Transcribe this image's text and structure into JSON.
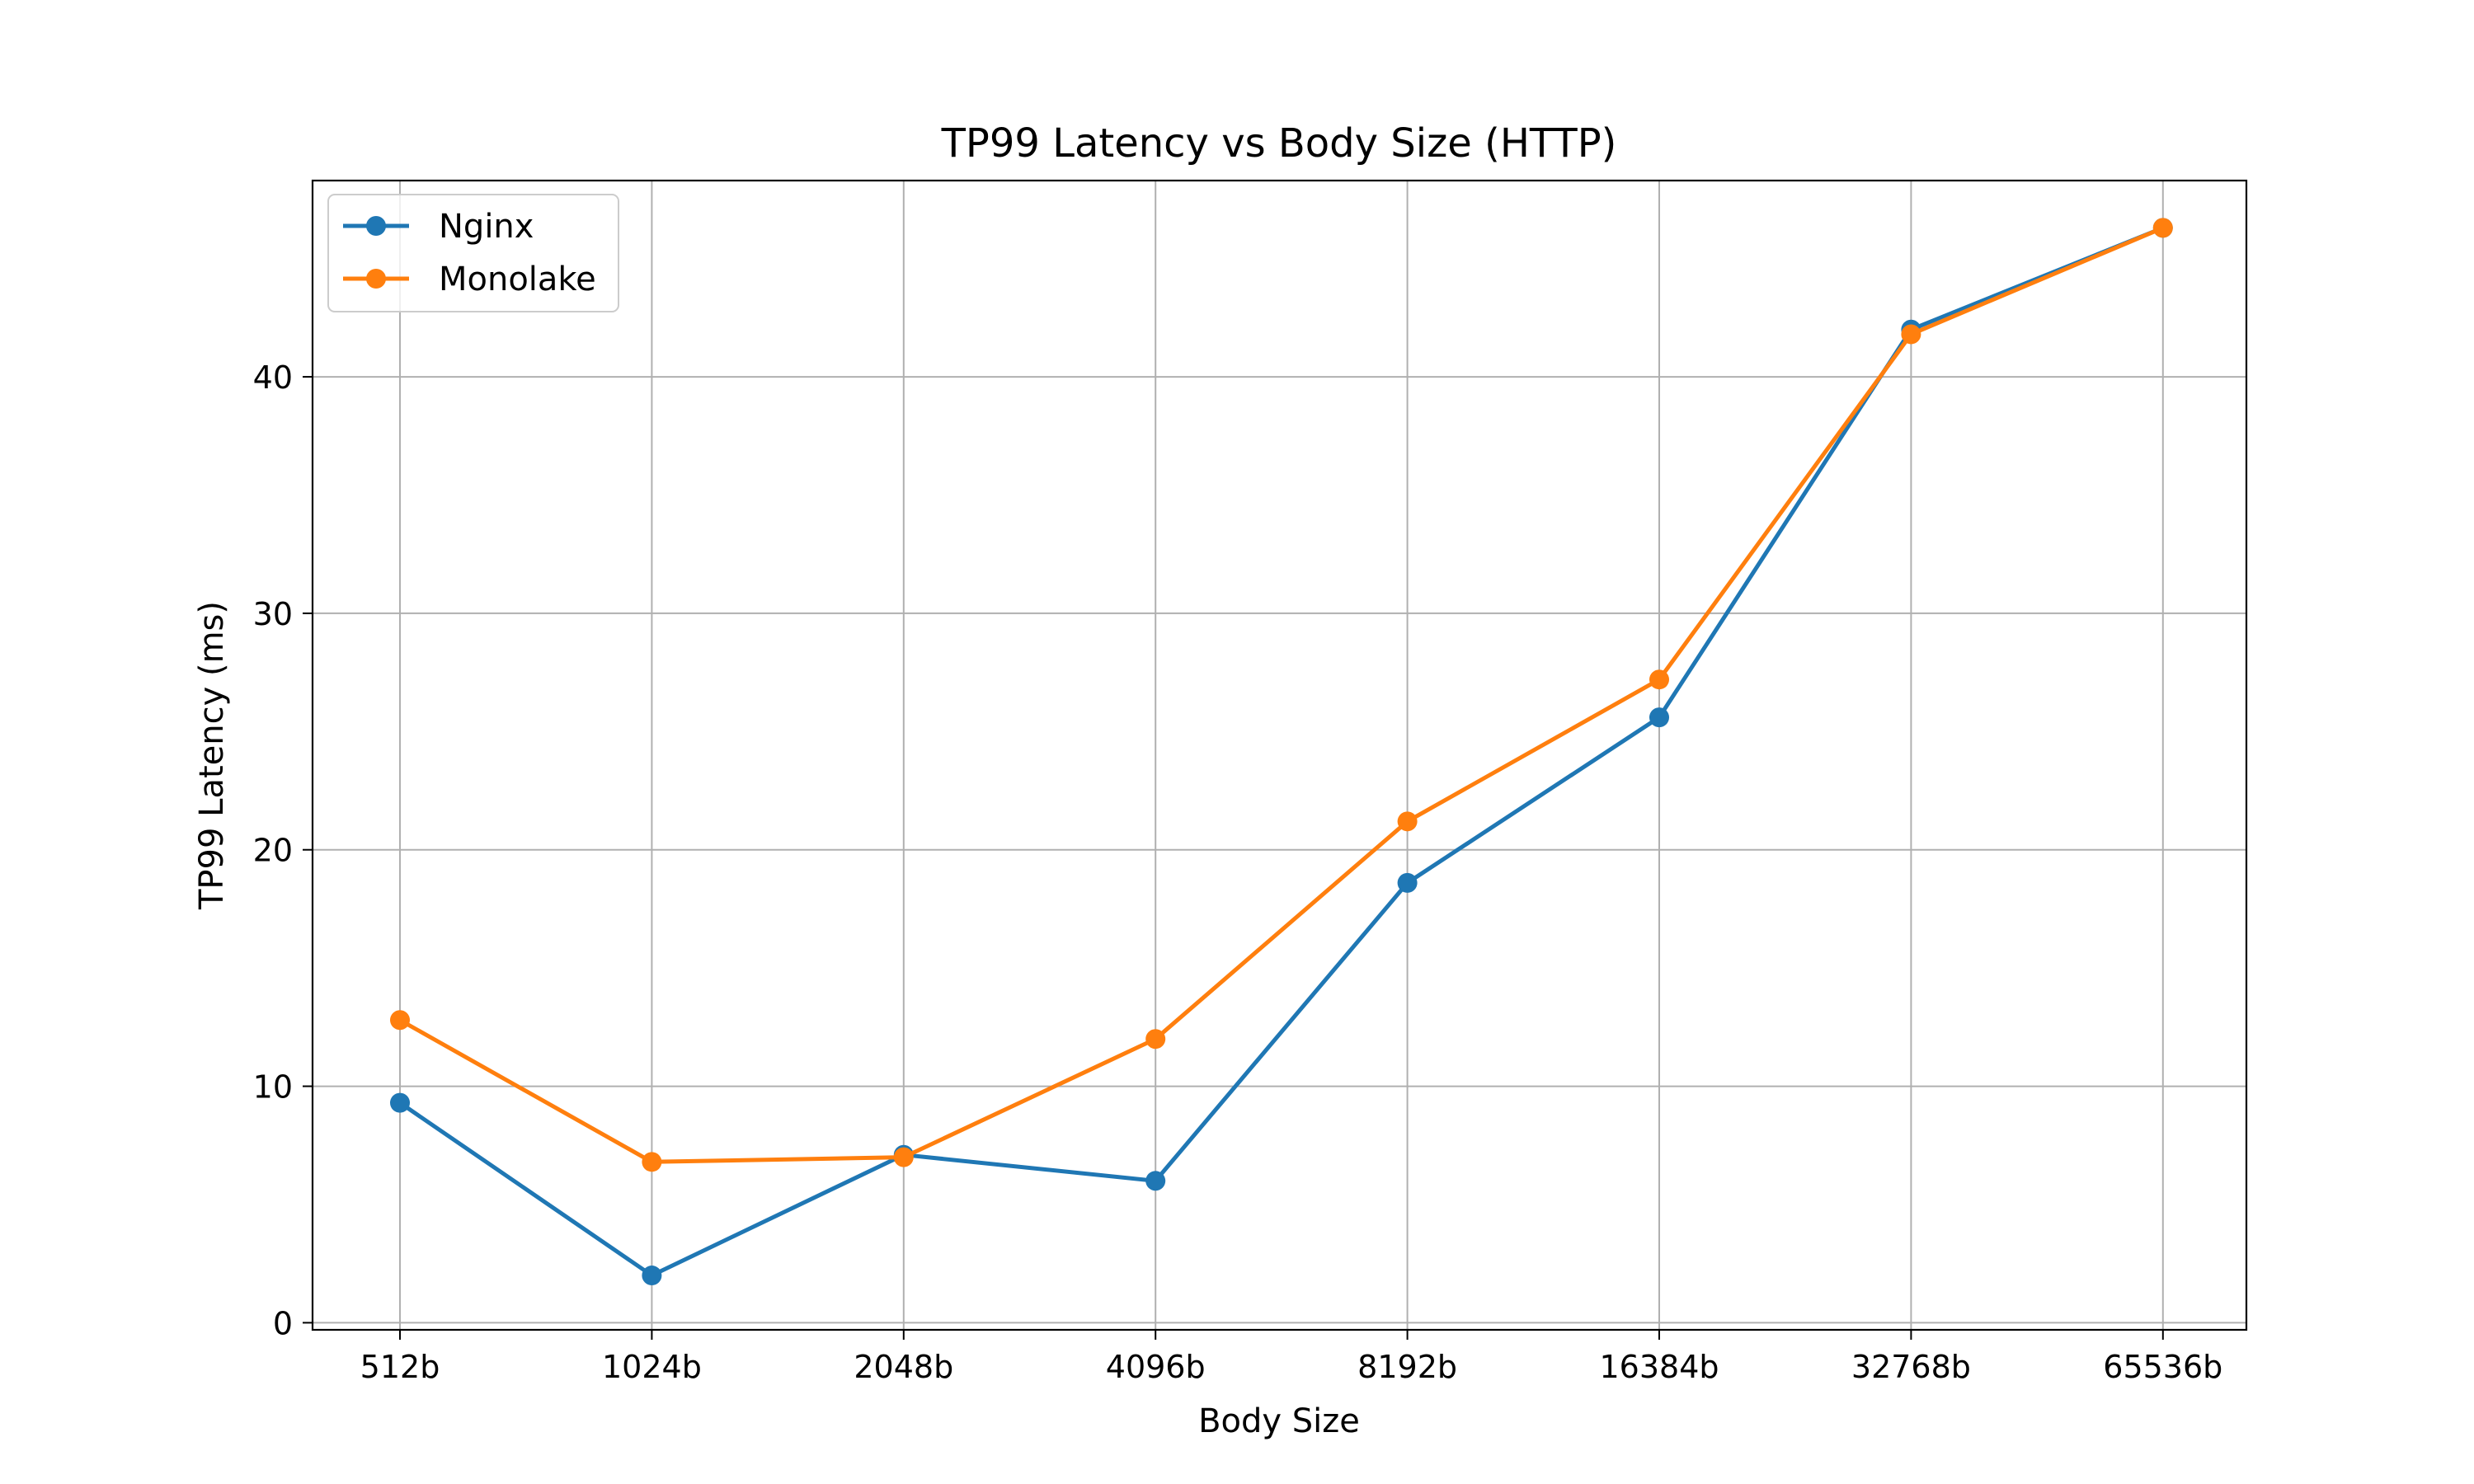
{
  "chart_data": {
    "type": "line",
    "title": "TP99 Latency vs Body Size (HTTP)",
    "xlabel": "Body Size",
    "ylabel": "TP99 Latency (ms)",
    "categories": [
      "512b",
      "1024b",
      "2048b",
      "4096b",
      "8192b",
      "16384b",
      "32768b",
      "65536b"
    ],
    "ylim": [
      -0.3,
      48.3
    ],
    "yticks": [
      0,
      10,
      20,
      30,
      40
    ],
    "grid": true,
    "legend_position": "top-left",
    "series": [
      {
        "name": "Nginx",
        "color": "#1f77b4",
        "marker": "circle",
        "values": [
          9.3,
          2.0,
          7.1,
          6.0,
          18.6,
          25.6,
          42.0,
          46.3
        ]
      },
      {
        "name": "Monolake",
        "color": "#ff7f0e",
        "marker": "circle",
        "values": [
          12.8,
          6.8,
          7.0,
          12.0,
          21.2,
          27.2,
          41.8,
          46.3
        ]
      }
    ]
  }
}
